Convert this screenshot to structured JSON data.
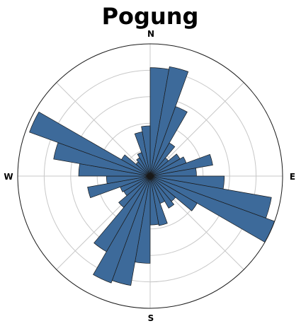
{
  "chart_data": {
    "type": "rose",
    "title": "Pogung",
    "directions": [
      "N",
      "E",
      "S",
      "W"
    ],
    "rmax": 1.0,
    "grid_rings": [
      0.2,
      0.4,
      0.6,
      0.8
    ],
    "grid_spokes_deg": [
      0,
      45,
      90,
      135,
      180,
      225,
      270,
      315
    ],
    "grid": true,
    "bin_width_deg": 10,
    "bin_centers_deg": [
      5,
      15,
      25,
      35,
      45,
      55,
      65,
      75,
      85,
      95,
      105,
      115,
      125,
      135,
      145,
      155,
      165,
      175,
      185,
      195,
      205,
      215,
      225,
      235,
      245,
      255,
      265,
      275,
      285,
      295,
      305,
      315,
      325,
      335,
      345,
      355
    ],
    "values": [
      0.82,
      0.84,
      0.56,
      0.29,
      0.18,
      0.26,
      0.29,
      0.48,
      0.35,
      0.56,
      0.93,
      1.0,
      0.41,
      0.25,
      0.28,
      0.22,
      0.38,
      0.37,
      0.66,
      0.84,
      0.86,
      0.66,
      0.31,
      0.23,
      0.24,
      0.48,
      0.33,
      0.54,
      0.74,
      0.97,
      0.25,
      0.14,
      0.16,
      0.19,
      0.34,
      0.38
    ],
    "bar_color": "#3d6a9a",
    "edge_color": "#1a1a1a"
  }
}
